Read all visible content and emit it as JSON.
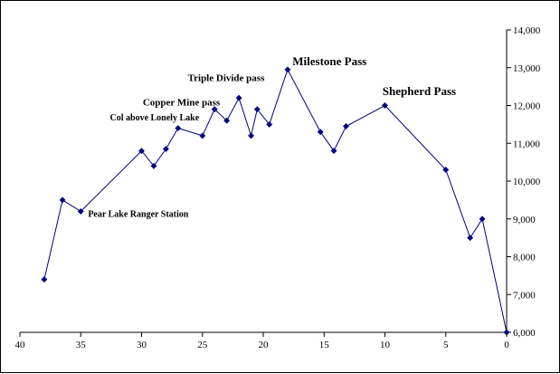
{
  "chart_data": {
    "type": "line",
    "title": "",
    "xlabel": "",
    "ylabel": "",
    "xlim": [
      40,
      0
    ],
    "ylim": [
      6000,
      14000
    ],
    "x_reversed": true,
    "y_axis_side": "right",
    "grid": false,
    "legend": "none",
    "x_ticks": [
      40,
      35,
      30,
      25,
      20,
      15,
      10,
      5,
      0
    ],
    "x_tick_labels": [
      "40",
      "35",
      "30",
      "25",
      "20",
      "15",
      "10",
      "5",
      "0"
    ],
    "y_ticks": [
      6000,
      7000,
      8000,
      9000,
      10000,
      11000,
      12000,
      13000,
      14000
    ],
    "y_tick_labels": [
      "6,000",
      "7,000",
      "8,000",
      "9,000",
      "10,000",
      "11,000",
      "12,000",
      "13,000",
      "14,000"
    ],
    "series": [
      {
        "color": "#000080",
        "marker": "diamond",
        "x": [
          38,
          36.5,
          35,
          30,
          29,
          28,
          27,
          25,
          24,
          23,
          22,
          21,
          20.5,
          19.5,
          18,
          15.3,
          14.2,
          13.2,
          10,
          5,
          3,
          2,
          0
        ],
        "y": [
          7400,
          9500,
          9200,
          10800,
          10400,
          10850,
          11400,
          11200,
          11900,
          11600,
          12200,
          11200,
          11900,
          11500,
          12950,
          11300,
          10800,
          11450,
          12000,
          10300,
          8500,
          9000,
          6000
        ]
      }
    ],
    "annotations": [
      {
        "text": "Pear Lake Ranger Station",
        "x": 34.4,
        "y": 9050,
        "size": "small"
      },
      {
        "text": "Col above Lonely Lake",
        "x": 32.6,
        "y": 11600,
        "size": "small"
      },
      {
        "text": "Copper Mine pass",
        "x": 29.9,
        "y": 12000,
        "size": "medium"
      },
      {
        "text": "Triple Divide pass",
        "x": 26.2,
        "y": 12650,
        "size": "medium"
      },
      {
        "text": "Milestone Pass",
        "x": 17.6,
        "y": 13060,
        "size": "large"
      },
      {
        "text": "Shepherd Pass",
        "x": 10.2,
        "y": 12280,
        "size": "large"
      }
    ]
  }
}
